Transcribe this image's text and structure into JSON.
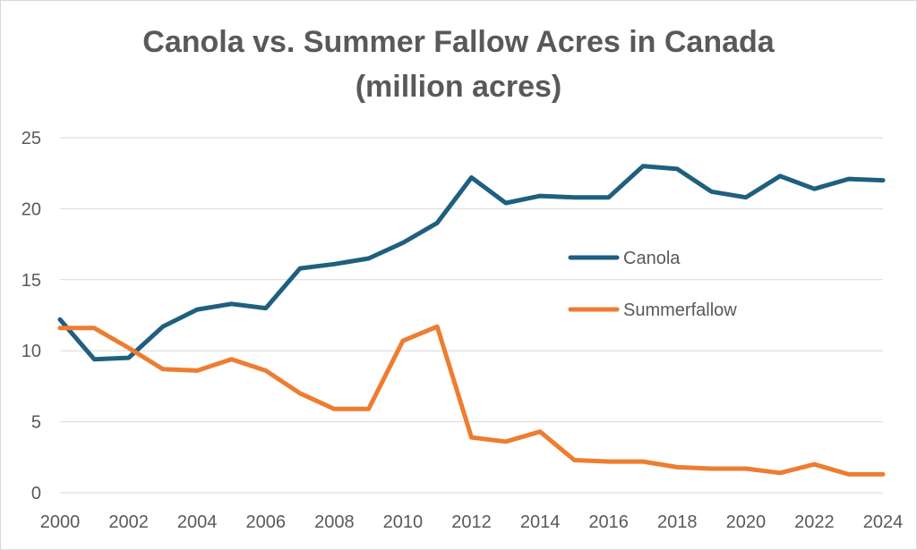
{
  "chart_data": {
    "type": "line",
    "title": "Canola vs. Summer Fallow Acres in Canada",
    "subtitle": "(million acres)",
    "x": [
      2000,
      2001,
      2002,
      2003,
      2004,
      2005,
      2006,
      2007,
      2008,
      2009,
      2010,
      2011,
      2012,
      2013,
      2014,
      2015,
      2016,
      2017,
      2018,
      2019,
      2020,
      2021,
      2022,
      2023,
      2024
    ],
    "x_tick_labels": [
      "2000",
      "2002",
      "2004",
      "2006",
      "2008",
      "2010",
      "2012",
      "2014",
      "2016",
      "2018",
      "2020",
      "2022",
      "2024"
    ],
    "y_tick_labels": [
      "0",
      "5",
      "10",
      "15",
      "20",
      "25"
    ],
    "ylim": [
      0,
      25
    ],
    "xlim": [
      2000,
      2024
    ],
    "grid": "horizontal",
    "legend_position": "right-center",
    "series": [
      {
        "name": "Canola",
        "color": "#1f5f7f",
        "values": [
          12.2,
          9.4,
          9.5,
          11.7,
          12.9,
          13.3,
          13.0,
          15.8,
          16.1,
          16.5,
          17.6,
          19.0,
          22.2,
          20.4,
          20.9,
          20.8,
          20.8,
          23.0,
          22.8,
          21.2,
          20.8,
          22.3,
          21.4,
          22.1,
          22.0
        ]
      },
      {
        "name": "Summerfallow",
        "color": "#ed7d31",
        "values": [
          11.6,
          11.6,
          10.2,
          8.7,
          8.6,
          9.4,
          8.6,
          7.0,
          5.9,
          5.9,
          10.7,
          11.7,
          3.9,
          3.6,
          4.3,
          2.3,
          2.2,
          2.2,
          1.8,
          1.7,
          1.7,
          1.4,
          2.0,
          1.3,
          1.3
        ]
      }
    ]
  }
}
